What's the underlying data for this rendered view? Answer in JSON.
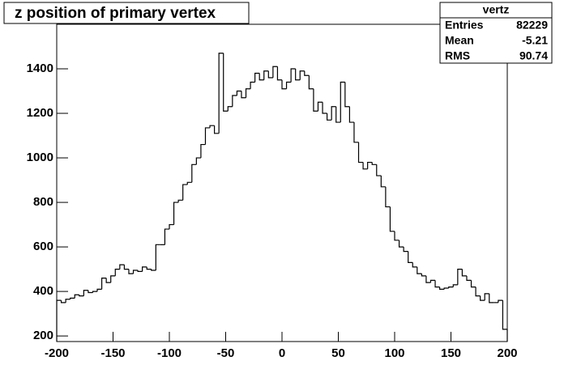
{
  "chart_data": {
    "type": "histogram",
    "title": "z position of primary vertex",
    "bins": [
      -200,
      -196,
      -192,
      -188,
      -184,
      -180,
      -176,
      -172,
      -168,
      -164,
      -160,
      -156,
      -152,
      -148,
      -144,
      -140,
      -136,
      -132,
      -128,
      -124,
      -120,
      -116,
      -112,
      -108,
      -104,
      -100,
      -96,
      -92,
      -88,
      -84,
      -80,
      -76,
      -72,
      -68,
      -64,
      -60,
      -56,
      -52,
      -48,
      -44,
      -40,
      -36,
      -32,
      -28,
      -24,
      -20,
      -16,
      -12,
      -8,
      -4,
      0,
      4,
      8,
      12,
      16,
      20,
      24,
      28,
      32,
      36,
      40,
      44,
      48,
      52,
      56,
      60,
      64,
      68,
      72,
      76,
      80,
      84,
      88,
      92,
      96,
      100,
      104,
      108,
      112,
      116,
      120,
      124,
      128,
      132,
      136,
      140,
      144,
      148,
      152,
      156,
      160,
      164,
      168,
      172,
      176,
      180,
      184,
      188,
      192,
      196,
      200
    ],
    "values": [
      360,
      350,
      365,
      370,
      385,
      380,
      405,
      395,
      400,
      410,
      460,
      440,
      470,
      500,
      520,
      500,
      480,
      495,
      490,
      510,
      500,
      495,
      610,
      610,
      680,
      700,
      800,
      810,
      880,
      890,
      970,
      1000,
      1060,
      1135,
      1145,
      1110,
      1470,
      1210,
      1230,
      1280,
      1300,
      1270,
      1310,
      1340,
      1380,
      1350,
      1390,
      1360,
      1410,
      1350,
      1310,
      1340,
      1400,
      1350,
      1390,
      1370,
      1310,
      1210,
      1250,
      1200,
      1170,
      1230,
      1160,
      1340,
      1230,
      1160,
      1070,
      980,
      950,
      980,
      970,
      920,
      870,
      780,
      670,
      630,
      600,
      580,
      530,
      510,
      480,
      470,
      440,
      450,
      420,
      410,
      415,
      420,
      430,
      500,
      470,
      450,
      420,
      380,
      360,
      390,
      350,
      350,
      360,
      230
    ],
    "color": "#000000",
    "xlim": [
      -200,
      200
    ],
    "xticks": [
      -200,
      -150,
      -100,
      -50,
      0,
      50,
      100,
      150,
      200
    ],
    "ylim": [
      175,
      1600
    ],
    "yticks": [
      200,
      400,
      600,
      800,
      1000,
      1200,
      1400
    ],
    "stats": {
      "title": "vertz",
      "rows": [
        {
          "label": "Entries",
          "value": 82229
        },
        {
          "label": "Mean",
          "value": -5.21
        },
        {
          "label": "RMS",
          "value": 90.74
        }
      ]
    }
  }
}
